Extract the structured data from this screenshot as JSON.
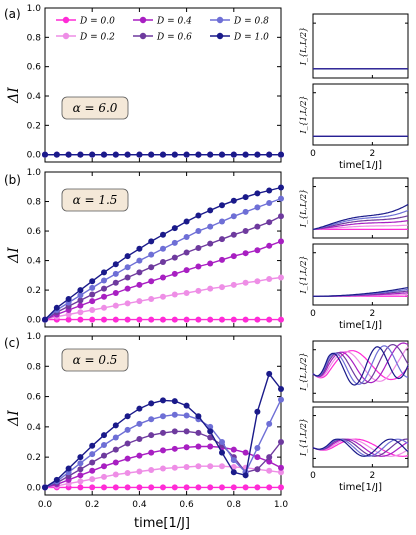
{
  "figure": {
    "panel_labels": [
      "(a)",
      "(b)",
      "(c)"
    ],
    "main_ylabel": "ΔI",
    "main_xlabel": "time[1/J]",
    "side_xlabel": "time[1/J]",
    "side_ylabel_top": "I_{L,L/2}",
    "side_ylabel_bottom": "I_{1,L/2}",
    "alpha_labels": [
      "α = 6.0",
      "α = 1.5",
      "α = 0.5"
    ],
    "legend": [
      "D = 0.0",
      "D = 0.2",
      "D = 0.4",
      "D = 0.6",
      "D = 0.8",
      "D = 1.0"
    ]
  },
  "chart_data": [
    {
      "type": "line",
      "panel": "(a)",
      "annotation": "α = 6.0",
      "xlabel": "",
      "ylabel": "ΔI",
      "xlim": [
        0,
        1
      ],
      "ylim": [
        -0.05,
        1.0
      ],
      "x_ticks": [
        0.0,
        0.2,
        0.4,
        0.6,
        0.8,
        1.0
      ],
      "y_ticks": [
        0.0,
        0.2,
        0.4,
        0.6,
        0.8,
        1.0
      ],
      "x": [
        0.0,
        0.05,
        0.1,
        0.15,
        0.2,
        0.25,
        0.3,
        0.35,
        0.4,
        0.45,
        0.5,
        0.55,
        0.6,
        0.65,
        0.7,
        0.75,
        0.8,
        0.85,
        0.9,
        0.95,
        1.0
      ],
      "series": [
        {
          "name": "D = 0.0",
          "color": "#ff2bd6",
          "values": [
            0,
            0,
            0,
            0,
            0,
            0,
            0,
            0,
            0,
            0,
            0,
            0,
            0,
            0,
            0,
            0,
            0,
            0,
            0,
            0,
            0
          ]
        },
        {
          "name": "D = 0.2",
          "color": "#ee8ee6",
          "values": [
            0,
            0,
            0,
            0,
            0,
            0,
            0,
            0,
            0,
            0,
            0,
            0,
            0,
            0,
            0,
            0,
            0,
            0,
            0,
            0,
            0
          ]
        },
        {
          "name": "D = 0.4",
          "color": "#a81fc2",
          "values": [
            0,
            0,
            0,
            0,
            0,
            0,
            0,
            0,
            0,
            0,
            0,
            0,
            0,
            0,
            0,
            0,
            0,
            0,
            0,
            0,
            0
          ]
        },
        {
          "name": "D = 0.6",
          "color": "#6e3a9e",
          "values": [
            0,
            0,
            0,
            0,
            0,
            0,
            0,
            0,
            0,
            0,
            0,
            0,
            0,
            0,
            0,
            0,
            0,
            0,
            0,
            0,
            0
          ]
        },
        {
          "name": "D = 0.8",
          "color": "#6e6fd6",
          "values": [
            0,
            0,
            0,
            0,
            0,
            0,
            0,
            0,
            0,
            0,
            0,
            0,
            0,
            0,
            0,
            0,
            0,
            0,
            0,
            0,
            0
          ]
        },
        {
          "name": "D = 1.0",
          "color": "#1a1a8a",
          "values": [
            0,
            0,
            0,
            0,
            0,
            0,
            0,
            0,
            0,
            0,
            0,
            0,
            0,
            0,
            0,
            0,
            0,
            0,
            0,
            0,
            0
          ]
        }
      ]
    },
    {
      "type": "line",
      "panel": "(b)",
      "annotation": "α = 1.5",
      "xlabel": "",
      "ylabel": "ΔI",
      "xlim": [
        0,
        1
      ],
      "ylim": [
        -0.05,
        1.0
      ],
      "x_ticks": [
        0.0,
        0.2,
        0.4,
        0.6,
        0.8,
        1.0
      ],
      "y_ticks": [
        0.0,
        0.2,
        0.4,
        0.6,
        0.8,
        1.0
      ],
      "x": [
        0.0,
        0.05,
        0.1,
        0.15,
        0.2,
        0.25,
        0.3,
        0.35,
        0.4,
        0.45,
        0.5,
        0.55,
        0.6,
        0.65,
        0.7,
        0.75,
        0.8,
        0.85,
        0.9,
        0.95,
        1.0
      ],
      "series": [
        {
          "name": "D = 0.0",
          "color": "#ff2bd6",
          "values": [
            0,
            0,
            0,
            0,
            0,
            0,
            0,
            0,
            0,
            0,
            0,
            0,
            0,
            0,
            0,
            0,
            0,
            0,
            0,
            0,
            0
          ]
        },
        {
          "name": "D = 0.2",
          "color": "#ee8ee6",
          "values": [
            0,
            0.02,
            0.035,
            0.05,
            0.065,
            0.08,
            0.095,
            0.11,
            0.125,
            0.14,
            0.155,
            0.17,
            0.18,
            0.195,
            0.21,
            0.22,
            0.235,
            0.25,
            0.26,
            0.275,
            0.285
          ]
        },
        {
          "name": "D = 0.4",
          "color": "#a81fc2",
          "values": [
            0,
            0.035,
            0.065,
            0.095,
            0.125,
            0.155,
            0.18,
            0.21,
            0.235,
            0.26,
            0.285,
            0.31,
            0.335,
            0.36,
            0.38,
            0.405,
            0.43,
            0.45,
            0.47,
            0.5,
            0.53
          ]
        },
        {
          "name": "D = 0.6",
          "color": "#6e3a9e",
          "values": [
            0,
            0.05,
            0.09,
            0.13,
            0.17,
            0.21,
            0.25,
            0.285,
            0.32,
            0.355,
            0.39,
            0.42,
            0.455,
            0.485,
            0.515,
            0.545,
            0.575,
            0.6,
            0.63,
            0.66,
            0.7
          ]
        },
        {
          "name": "D = 0.8",
          "color": "#6e6fd6",
          "values": [
            0,
            0.065,
            0.115,
            0.165,
            0.215,
            0.265,
            0.31,
            0.355,
            0.4,
            0.44,
            0.48,
            0.52,
            0.56,
            0.6,
            0.63,
            0.665,
            0.7,
            0.73,
            0.76,
            0.79,
            0.82
          ]
        },
        {
          "name": "D = 1.0",
          "color": "#1a1a8a",
          "values": [
            0,
            0.08,
            0.14,
            0.2,
            0.26,
            0.32,
            0.375,
            0.43,
            0.48,
            0.53,
            0.575,
            0.62,
            0.665,
            0.705,
            0.74,
            0.775,
            0.805,
            0.83,
            0.855,
            0.875,
            0.895
          ]
        }
      ]
    },
    {
      "type": "line",
      "panel": "(c)",
      "annotation": "α = 0.5",
      "xlabel": "time[1/J]",
      "ylabel": "ΔI",
      "xlim": [
        0,
        1
      ],
      "ylim": [
        -0.05,
        1.0
      ],
      "x_ticks": [
        0.0,
        0.2,
        0.4,
        0.6,
        0.8,
        1.0
      ],
      "y_ticks": [
        0.0,
        0.2,
        0.4,
        0.6,
        0.8,
        1.0
      ],
      "x": [
        0.0,
        0.05,
        0.1,
        0.15,
        0.2,
        0.25,
        0.3,
        0.35,
        0.4,
        0.45,
        0.5,
        0.55,
        0.6,
        0.65,
        0.7,
        0.75,
        0.8,
        0.85,
        0.9,
        0.95,
        1.0
      ],
      "series": [
        {
          "name": "D = 0.0",
          "color": "#ff2bd6",
          "values": [
            0,
            0,
            0,
            0,
            0,
            0,
            0,
            0,
            0,
            0,
            0,
            0,
            0,
            0,
            0,
            0,
            0,
            0,
            0,
            0,
            0
          ]
        },
        {
          "name": "D = 0.2",
          "color": "#ee8ee6",
          "values": [
            0,
            0.01,
            0.025,
            0.04,
            0.055,
            0.07,
            0.085,
            0.095,
            0.105,
            0.115,
            0.125,
            0.13,
            0.135,
            0.14,
            0.14,
            0.14,
            0.135,
            0.13,
            0.12,
            0.11,
            0.1
          ]
        },
        {
          "name": "D = 0.4",
          "color": "#a81fc2",
          "values": [
            0,
            0.02,
            0.05,
            0.08,
            0.11,
            0.14,
            0.165,
            0.19,
            0.21,
            0.23,
            0.245,
            0.255,
            0.265,
            0.27,
            0.27,
            0.265,
            0.25,
            0.23,
            0.2,
            0.17,
            0.13
          ]
        },
        {
          "name": "D = 0.6",
          "color": "#6e3a9e",
          "values": [
            0,
            0.03,
            0.075,
            0.12,
            0.165,
            0.21,
            0.25,
            0.29,
            0.32,
            0.345,
            0.36,
            0.37,
            0.37,
            0.36,
            0.33,
            0.28,
            0.2,
            0.1,
            0.12,
            0.2,
            0.3
          ]
        },
        {
          "name": "D = 0.8",
          "color": "#6e6fd6",
          "values": [
            0,
            0.04,
            0.1,
            0.16,
            0.22,
            0.28,
            0.33,
            0.38,
            0.42,
            0.45,
            0.47,
            0.48,
            0.475,
            0.45,
            0.4,
            0.3,
            0.18,
            0.1,
            0.26,
            0.42,
            0.58
          ]
        },
        {
          "name": "D = 1.0",
          "color": "#1a1a8a",
          "values": [
            0,
            0.05,
            0.125,
            0.2,
            0.275,
            0.345,
            0.41,
            0.47,
            0.52,
            0.555,
            0.575,
            0.57,
            0.54,
            0.47,
            0.37,
            0.23,
            0.1,
            0.08,
            0.5,
            0.75,
            0.65
          ]
        }
      ]
    }
  ],
  "side_panels": {
    "xlim": [
      0,
      3.2
    ],
    "x_ticks": [
      0,
      2
    ],
    "y_ticks": [
      0.0,
      0.1
    ],
    "ylim": [
      -0.02,
      0.12
    ],
    "colors": [
      "#ff2bd6",
      "#ee8ee6",
      "#a81fc2",
      "#6e3a9e",
      "#6e6fd6",
      "#1a1a8a"
    ]
  }
}
